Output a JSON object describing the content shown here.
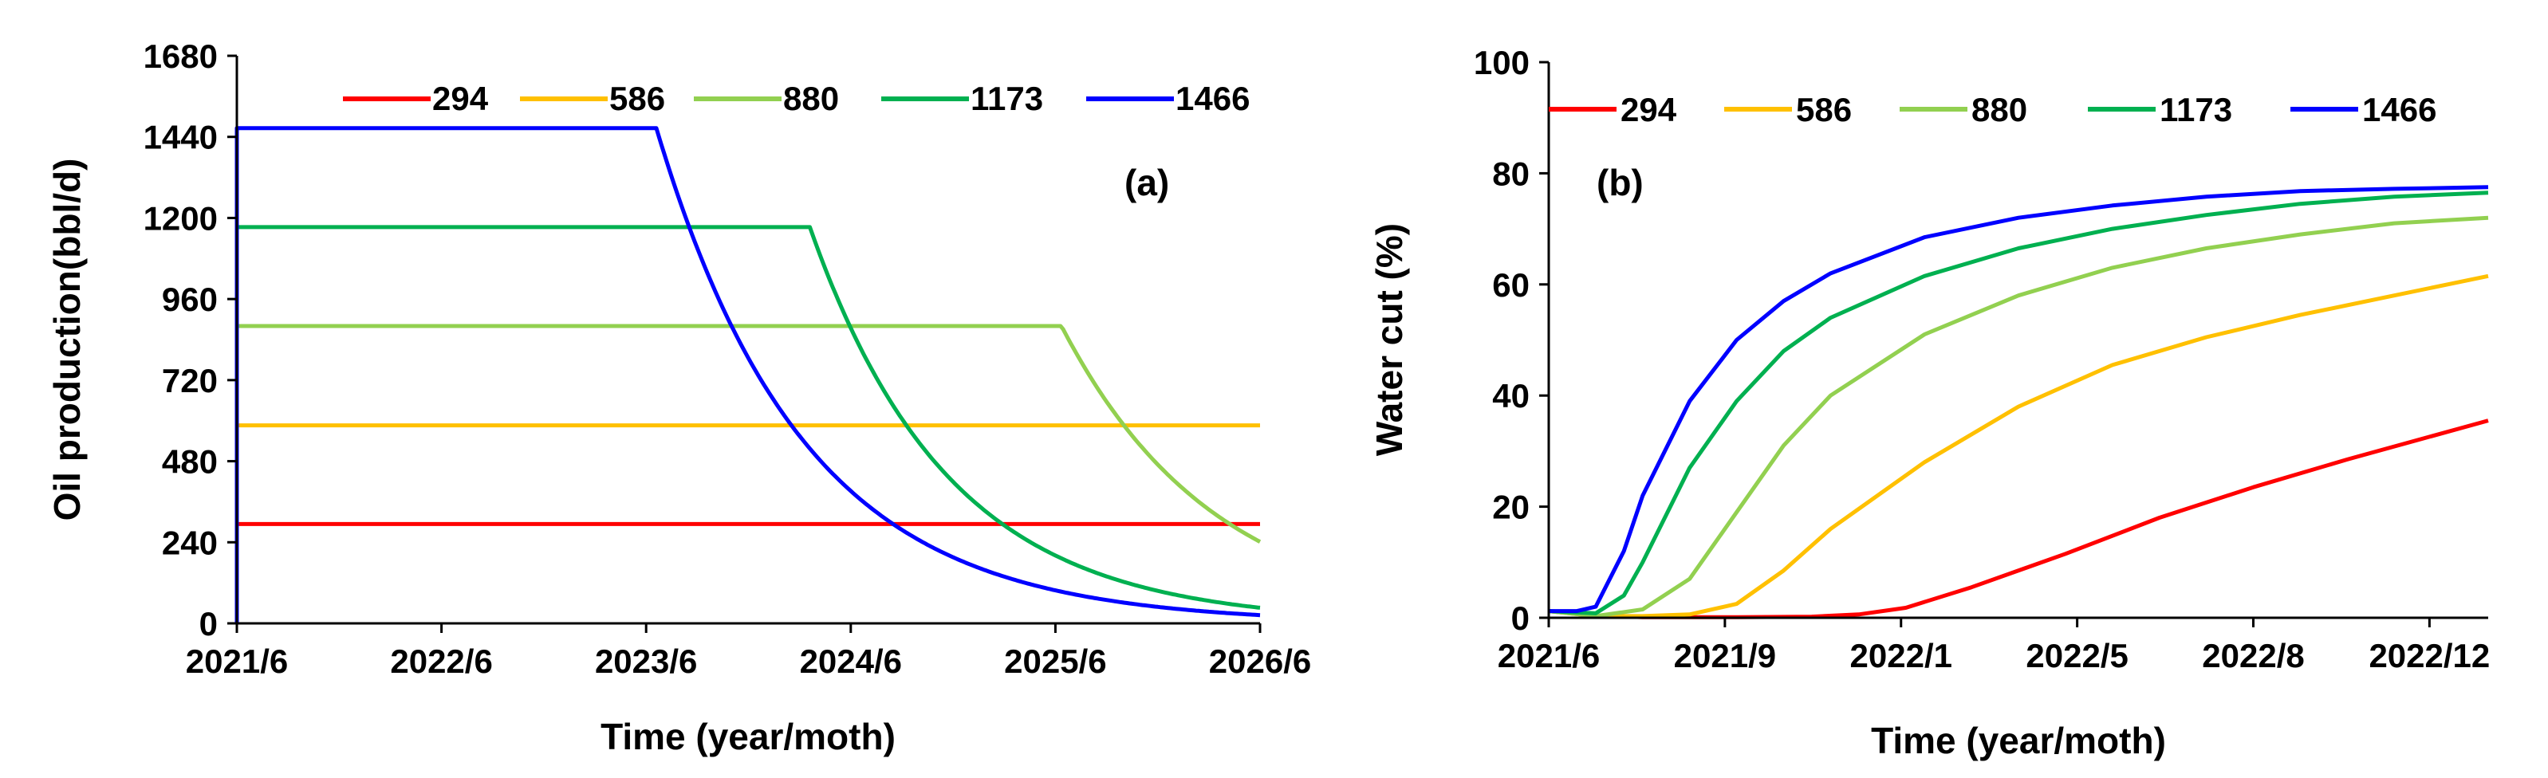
{
  "chart_data": [
    {
      "id": "a",
      "type": "line",
      "panel_label": "(a)",
      "xlabel": "Time (year/moth)",
      "ylabel": "Oil production(bbl/d)",
      "xlim": [
        2021.42,
        2026.42
      ],
      "ylim": [
        0,
        1680
      ],
      "x_ticks": [
        {
          "label": "2021/6",
          "value": 2021.42
        },
        {
          "label": "2022/6",
          "value": 2022.42
        },
        {
          "label": "2023/6",
          "value": 2023.42
        },
        {
          "label": "2024/6",
          "value": 2024.42
        },
        {
          "label": "2025/6",
          "value": 2025.42
        },
        {
          "label": "2026/6",
          "value": 2026.42
        }
      ],
      "y_ticks": [
        0,
        240,
        480,
        720,
        960,
        1200,
        1440,
        1680
      ],
      "legend_position": "top",
      "series": [
        {
          "name": "294",
          "color": "#ff0000",
          "plateau": 294,
          "decline_start": null,
          "tau": null
        },
        {
          "name": "586",
          "color": "#ffc000",
          "plateau": 586,
          "decline_start": null,
          "tau": null
        },
        {
          "name": "880",
          "color": "#92d050",
          "plateau": 880,
          "decline_start": 2025.45,
          "tau": 0.75
        },
        {
          "name": "1173",
          "color": "#00b050",
          "plateau": 1173,
          "decline_start": 2024.22,
          "tau": 0.68
        },
        {
          "name": "1466",
          "color": "#0000ff",
          "plateau": 1466,
          "decline_start": 2023.47,
          "tau": 0.72
        }
      ]
    },
    {
      "id": "b",
      "type": "line",
      "panel_label": "(b)",
      "xlabel": "Time (year/moth)",
      "ylabel": "Water cut (%)",
      "xlim": [
        0,
        1
      ],
      "ylim": [
        0,
        100
      ],
      "x_ticks": [
        {
          "label": "2021/6",
          "value": 0
        },
        {
          "label": "2021/9",
          "value": 0.1875
        },
        {
          "label": "2022/1",
          "value": 0.375
        },
        {
          "label": "2022/5",
          "value": 0.5625
        },
        {
          "label": "2022/8",
          "value": 0.75
        },
        {
          "label": "2022/12",
          "value": 0.9375
        }
      ],
      "y_ticks": [
        0,
        20,
        40,
        60,
        80,
        100
      ],
      "legend_position": "top",
      "series": [
        {
          "name": "294",
          "color": "#ff0000",
          "x": [
            0,
            0.05,
            0.1,
            0.2,
            0.28,
            0.33,
            0.38,
            0.45,
            0.55,
            0.65,
            0.75,
            0.85,
            1.0
          ],
          "values": [
            1.2,
            0.4,
            0.1,
            0.1,
            0.2,
            0.6,
            1.8,
            5.5,
            11.5,
            18,
            23.5,
            28.5,
            35.5
          ]
        },
        {
          "name": "586",
          "color": "#ffc000",
          "x": [
            0,
            0.05,
            0.1,
            0.15,
            0.2,
            0.25,
            0.3,
            0.4,
            0.5,
            0.6,
            0.7,
            0.8,
            0.9,
            1.0
          ],
          "values": [
            1.2,
            0.3,
            0.3,
            0.6,
            2.5,
            8.5,
            16,
            28,
            38,
            45.5,
            50.5,
            54.5,
            58,
            61.5
          ]
        },
        {
          "name": "880",
          "color": "#92d050",
          "x": [
            0,
            0.05,
            0.1,
            0.15,
            0.2,
            0.25,
            0.3,
            0.4,
            0.5,
            0.6,
            0.7,
            0.8,
            0.9,
            1.0
          ],
          "values": [
            1.2,
            0.3,
            1.5,
            7,
            19,
            31,
            40,
            51,
            58,
            63,
            66.5,
            69,
            71,
            72
          ]
        },
        {
          "name": "1173",
          "color": "#00b050",
          "x": [
            0,
            0.05,
            0.08,
            0.1,
            0.15,
            0.2,
            0.25,
            0.3,
            0.4,
            0.5,
            0.6,
            0.7,
            0.8,
            0.9,
            1.0
          ],
          "values": [
            1.2,
            0.8,
            4,
            10,
            27,
            39,
            48,
            54,
            61.5,
            66.5,
            70,
            72.5,
            74.5,
            75.8,
            76.5
          ]
        },
        {
          "name": "1466",
          "color": "#0000ff",
          "x": [
            0,
            0.03,
            0.05,
            0.08,
            0.1,
            0.15,
            0.2,
            0.25,
            0.3,
            0.4,
            0.5,
            0.6,
            0.7,
            0.8,
            0.9,
            1.0
          ],
          "values": [
            1.2,
            1.2,
            2,
            12,
            22,
            39,
            50,
            57,
            62,
            68.5,
            72,
            74.2,
            75.8,
            76.8,
            77.2,
            77.5
          ]
        }
      ]
    }
  ]
}
